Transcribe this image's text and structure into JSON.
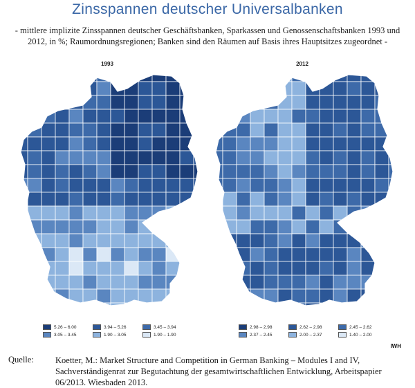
{
  "title": "Zinsspannen deutscher Universalbanken",
  "subtitle": "- mittlere implizite Zinsspannen deutscher Geschäftsbanken, Sparkassen und Genossenschaftsbanken 1993 und 2012, in %; Raumordnungsregionen; Banken sind den Räumen auf Basis ihres Hauptsitzes zugeordnet -",
  "maps": [
    {
      "year": "1993",
      "legend": [
        {
          "label": "5.26 – 6.00",
          "color": "#1b3d78"
        },
        {
          "label": "3.94 – 5.26",
          "color": "#2c5797"
        },
        {
          "label": "3.45 – 3.94",
          "color": "#3d6aa9"
        },
        {
          "label": "3.05 – 3.45",
          "color": "#5a86c0"
        },
        {
          "label": "1.90 – 3.05",
          "color": "#8db3de"
        },
        {
          "label": "1.90 – 1.90",
          "color": "#dbe8f6"
        }
      ]
    },
    {
      "year": "2012",
      "legend": [
        {
          "label": "2.98 – 2.98",
          "color": "#1b3d78"
        },
        {
          "label": "2.62 – 2.98",
          "color": "#2c5797"
        },
        {
          "label": "2.45 – 2.62",
          "color": "#3d6aa9"
        },
        {
          "label": "2.37 – 2.45",
          "color": "#5a86c0"
        },
        {
          "label": "2.00 – 2.37",
          "color": "#8db3de"
        },
        {
          "label": "1.40 – 2.00",
          "color": "#dbe8f6"
        }
      ]
    }
  ],
  "credit": "IWH",
  "source": {
    "label": "Quelle:",
    "text": "Koetter, M.: Market Structure and Competition in German Banking – Modules I and IV, Sachverständigenrat zur Begutachtung der gesamtwirtschaftlichen Entwicklung, Arbeitspapier 06/2013. Wiesbaden 2013."
  }
}
